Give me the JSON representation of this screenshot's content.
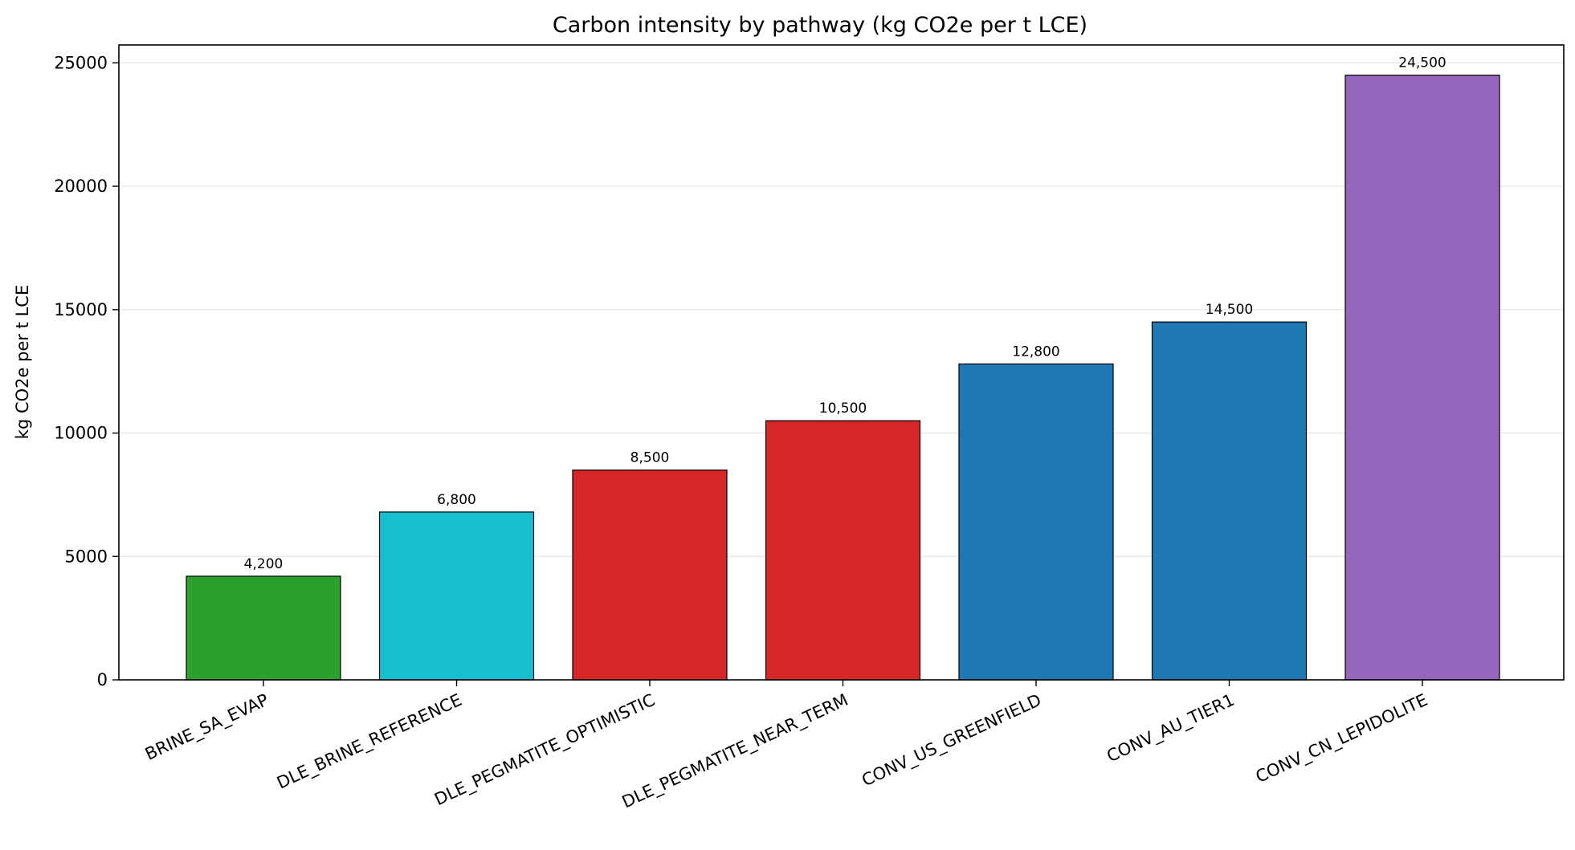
{
  "chart_data": {
    "type": "bar",
    "title": "Carbon intensity by pathway (kg CO2e per t LCE)",
    "xlabel": "",
    "ylabel": "kg CO2e per t LCE",
    "categories": [
      "BRINE_SA_EVAP",
      "DLE_BRINE_REFERENCE",
      "DLE_PEGMATITE_OPTIMISTIC",
      "DLE_PEGMATITE_NEAR_TERM",
      "CONV_US_GREENFIELD",
      "CONV_AU_TIER1",
      "CONV_CN_LEPIDOLITE"
    ],
    "values": [
      4200,
      6800,
      8500,
      10500,
      12800,
      14500,
      24500
    ],
    "value_labels": [
      "4,200",
      "6,800",
      "8,500",
      "10,500",
      "12,800",
      "14,500",
      "24,500"
    ],
    "colors": [
      "#2ca02c",
      "#17becf",
      "#d62728",
      "#d62728",
      "#1f77b4",
      "#1f77b4",
      "#9467bd"
    ],
    "ylim": [
      0,
      25725
    ],
    "yticks": [
      0,
      5000,
      10000,
      15000,
      20000,
      25000
    ],
    "grid": "horizontal",
    "legend": "none"
  }
}
